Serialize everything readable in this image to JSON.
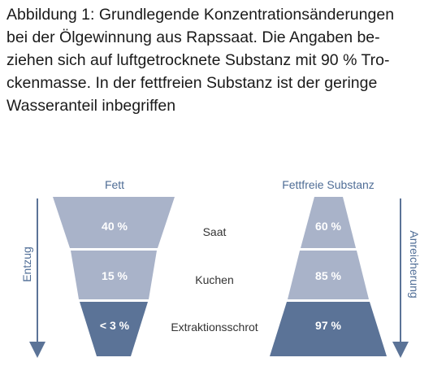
{
  "caption": {
    "lines": [
      "Abbildung 1: Grundlegende Konzentrationsänderungen",
      "bei der Ölgewinnung aus Rapssaat. Die Angaben be-",
      "ziehen sich auf luftgetrocknete Substanz mit 90 % Tro-",
      "ckenmasse. In der fettfreien Substanz ist der geringe",
      "Wasseranteil inbegriffen"
    ]
  },
  "diagram": {
    "left_title": "Fett",
    "right_title": "Fettfreie Substanz",
    "left_arrow_label": "Entzug",
    "right_arrow_label": "Anreicherung",
    "stages": [
      {
        "name": "Saat",
        "fett": "40 %",
        "fettfrei": "60 %"
      },
      {
        "name": "Kuchen",
        "fett": "15 %",
        "fettfrei": "85 %"
      },
      {
        "name": "Extraktionsschrot",
        "fett": "< 3 %",
        "fettfrei": "97 %"
      }
    ],
    "colors": {
      "light": "#a9b3c9",
      "dark": "#5b7397",
      "arrow": "#5b7397",
      "title": "#4f6d96",
      "stage_label": "#333333",
      "value_text": "#ffffff"
    }
  }
}
